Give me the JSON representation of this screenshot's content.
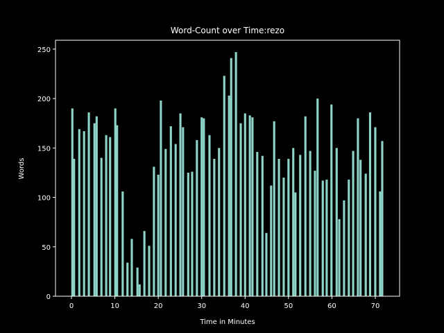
{
  "chart_data": {
    "type": "bar",
    "title": "Word-Count over Time:rezo",
    "xlabel": "Time in Minutes",
    "ylabel": "Words",
    "color": "#8dd3c7",
    "bar_width": 0.5,
    "x": [
      0.2,
      0.6,
      1.8,
      2.9,
      4.0,
      5.3,
      5.8,
      6.9,
      8.0,
      8.9,
      10.1,
      10.5,
      11.8,
      12.9,
      13.9,
      15.2,
      15.7,
      16.8,
      17.9,
      19.0,
      20.0,
      20.6,
      21.7,
      22.9,
      24.0,
      25.1,
      25.7,
      26.9,
      27.8,
      28.9,
      30.0,
      30.5,
      31.8,
      32.9,
      34.0,
      35.2,
      36.3,
      36.8,
      37.9,
      39.0,
      40.0,
      41.1,
      41.7,
      42.8,
      44.0,
      44.9,
      46.0,
      46.7,
      47.8,
      48.9,
      50.0,
      51.1,
      51.6,
      52.7,
      53.9,
      55.0,
      56.1,
      56.7,
      57.9,
      58.8,
      59.9,
      61.1,
      61.7,
      62.8,
      63.9,
      64.9,
      66.0,
      66.6,
      67.8,
      68.8,
      70.0,
      71.1,
      71.6
    ],
    "values": [
      190,
      139,
      169,
      167,
      186,
      175,
      182,
      140,
      163,
      161,
      190,
      173,
      106,
      34,
      58,
      29,
      12,
      66,
      51,
      131,
      123,
      198,
      149,
      172,
      154,
      185,
      171,
      125,
      126,
      158,
      181,
      180,
      163,
      139,
      150,
      223,
      203,
      241,
      247,
      175,
      185,
      183,
      181,
      146,
      142,
      64,
      112,
      177,
      139,
      120,
      139,
      150,
      105,
      143,
      182,
      147,
      127,
      200,
      117,
      118,
      194,
      150,
      78,
      97,
      118,
      147,
      180,
      138,
      124,
      186,
      171,
      106,
      157
    ],
    "xlim": [
      -3.68,
      75.6
    ],
    "ylim": [
      0,
      259
    ],
    "xticks": [
      0,
      10,
      20,
      30,
      40,
      50,
      60,
      70
    ],
    "yticks": [
      0,
      50,
      100,
      150,
      200,
      250
    ]
  }
}
